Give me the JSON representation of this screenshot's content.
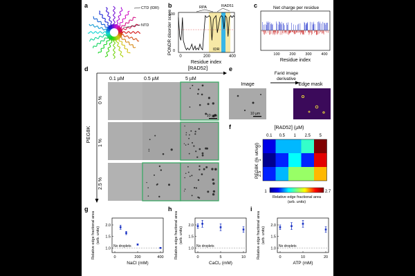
{
  "panels": {
    "a": "a",
    "b": "b",
    "c": "c",
    "d": "d",
    "e": "e",
    "f": "f",
    "g": "g",
    "h": "h",
    "i": "i"
  },
  "panel_a": {
    "ctd_label": "CTD (IDR)",
    "ntd_label": "NTD"
  },
  "panel_b": {
    "ylabel": "PONDR disorder score",
    "xlabel": "Residue index",
    "rpa_label": "RPA",
    "rad51_label": "RAD51",
    "idr_label": "IDR",
    "yticks": [
      "0",
      "100"
    ],
    "xticks": [
      "0",
      "200",
      "400"
    ]
  },
  "panel_c": {
    "ylabel": "Net charge per residue",
    "xlabel": "Residue index",
    "xticks": [
      "100",
      "200",
      "300",
      "400"
    ]
  },
  "panel_d": {
    "header": "[RAD52]",
    "concentrations": [
      "0.1 µM",
      "0.5 µM",
      "5 µM"
    ],
    "peg_axis": "PEG8K",
    "peg_levels": [
      "0 %",
      "1 %",
      "2.5 %"
    ],
    "scalebar": "10 µm"
  },
  "panel_e": {
    "arrow_label_1": "Farid image",
    "arrow_label_2": "derivative",
    "image_label": "Image",
    "mask_label": "Edge mask",
    "scalebar": "10 µm"
  },
  "panel_f": {
    "xlabel": "[RAD52] (µM)",
    "xticks": [
      "0.1",
      "0.5",
      "1",
      "2.5",
      "5"
    ],
    "ylabel": "PEG8K (% wt/vol)",
    "yticks": [
      "0",
      "1",
      "2.5"
    ],
    "cbar_min": "1",
    "cbar_max": "2.7",
    "cbar_title_1": "Relative edge fractional area",
    "cbar_title_2": "(arb. units)",
    "cells": [
      [
        1.2,
        1.5,
        1.5,
        1.7,
        2.7
      ],
      [
        1.0,
        1.3,
        1.6,
        1.3,
        2.5
      ],
      [
        1.3,
        1.5,
        1.9,
        1.9,
        2.2
      ]
    ]
  },
  "chart_data": [
    {
      "type": "scatter",
      "panel": "g",
      "ylabel": "Relative edge fractional area",
      "ylabel_unit": "(arb. units)",
      "xlabel": "NaCl (mM)",
      "xticks": [
        0,
        200,
        400
      ],
      "ylim": [
        0.8,
        2.3
      ],
      "yticks": [
        1.0,
        1.5,
        2.0
      ],
      "baseline_label": "No droplets",
      "baseline": 1.0,
      "points": [
        {
          "x": 50,
          "y": 1.9,
          "err": 0.09
        },
        {
          "x": 100,
          "y": 1.65,
          "err": 0.07
        },
        {
          "x": 200,
          "y": 1.15,
          "err": 0.03
        },
        {
          "x": 400,
          "y": 1.0,
          "err": 0.02
        }
      ]
    },
    {
      "type": "scatter",
      "panel": "h",
      "ylabel": "Relative edge fractional area",
      "ylabel_unit": "(arb. units)",
      "xlabel": "CaCl₂ (mM)",
      "xticks": [
        0,
        5,
        10
      ],
      "ylim": [
        0.8,
        2.3
      ],
      "yticks": [
        1.0,
        1.5,
        2.0
      ],
      "baseline_label": "No droplets",
      "baseline": 1.0,
      "points": [
        {
          "x": 0,
          "y": 1.95,
          "err": 0.1
        },
        {
          "x": 1,
          "y": 2.05,
          "err": 0.15
        },
        {
          "x": 5,
          "y": 1.9,
          "err": 0.15
        },
        {
          "x": 10,
          "y": 1.8,
          "err": 0.12
        }
      ]
    },
    {
      "type": "scatter",
      "panel": "i",
      "ylabel": "Relative edge fractional area",
      "ylabel_unit": "(arb. units)",
      "xlabel": "ATP (mM)",
      "xticks": [
        0,
        10,
        20
      ],
      "ylim": [
        0.8,
        2.3
      ],
      "yticks": [
        1.0,
        1.5,
        2.0
      ],
      "baseline_label": "No droplets",
      "baseline": 1.0,
      "points": [
        {
          "x": 0,
          "y": 1.9,
          "err": 0.1
        },
        {
          "x": 5,
          "y": 1.95,
          "err": 0.15
        },
        {
          "x": 10,
          "y": 2.05,
          "err": 0.15
        },
        {
          "x": 20,
          "y": 1.8,
          "err": 0.12
        }
      ]
    }
  ]
}
